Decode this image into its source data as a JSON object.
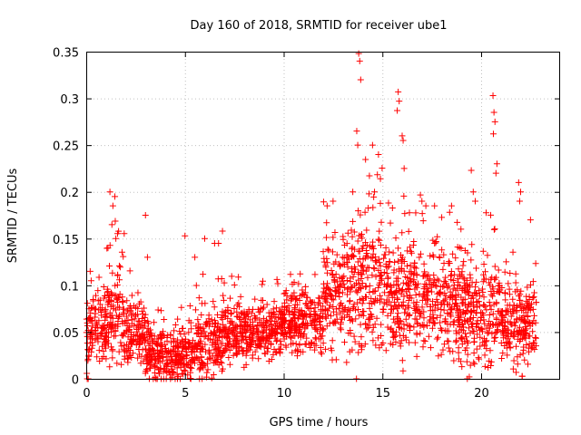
{
  "chart_data": {
    "type": "scatter",
    "title": "Day 160 of 2018, SRMTID for receiver ube1",
    "xlabel": "GPS time / hours",
    "ylabel": "SRMTID / TECUs",
    "xlim": [
      0,
      24
    ],
    "ylim": [
      0,
      0.35
    ],
    "grid": true,
    "marker": "+",
    "color": "#ff0000",
    "xticks": [
      0,
      5,
      10,
      15,
      20
    ],
    "xtick_labels": [
      "0",
      "5",
      "10",
      "15",
      "20"
    ],
    "yticks": [
      0,
      0.05,
      0.1,
      0.15,
      0.2,
      0.25,
      0.3,
      0.35
    ],
    "ytick_labels": [
      "0",
      "0.05",
      "0.1",
      "0.15",
      "0.2",
      "0.25",
      "0.3",
      "0.35"
    ],
    "series": [
      {
        "name": "SRMTID",
        "segments": [
          {
            "t0": 0.0,
            "t1": 1.0,
            "base": 0.05,
            "spread": 0.04
          },
          {
            "t0": 1.0,
            "t1": 2.0,
            "base": 0.065,
            "spread": 0.06
          },
          {
            "t0": 2.0,
            "t1": 3.0,
            "base": 0.05,
            "spread": 0.04
          },
          {
            "t0": 3.0,
            "t1": 5.5,
            "base": 0.025,
            "spread": 0.03
          },
          {
            "t0": 5.5,
            "t1": 7.0,
            "base": 0.04,
            "spread": 0.04
          },
          {
            "t0": 7.0,
            "t1": 10.0,
            "base": 0.05,
            "spread": 0.035
          },
          {
            "t0": 10.0,
            "t1": 12.0,
            "base": 0.06,
            "spread": 0.04
          },
          {
            "t0": 12.0,
            "t1": 13.0,
            "base": 0.09,
            "spread": 0.06
          },
          {
            "t0": 13.0,
            "t1": 15.0,
            "base": 0.1,
            "spread": 0.08
          },
          {
            "t0": 15.0,
            "t1": 17.0,
            "base": 0.09,
            "spread": 0.07
          },
          {
            "t0": 17.0,
            "t1": 19.0,
            "base": 0.08,
            "spread": 0.06
          },
          {
            "t0": 19.0,
            "t1": 21.0,
            "base": 0.07,
            "spread": 0.06
          },
          {
            "t0": 21.0,
            "t1": 22.8,
            "base": 0.06,
            "spread": 0.05
          }
        ],
        "n_points": 2600,
        "peaks": [
          {
            "x": 0.2,
            "y": 0.115
          },
          {
            "x": 0.25,
            "y": 0.105
          },
          {
            "x": 1.2,
            "y": 0.2
          },
          {
            "x": 1.35,
            "y": 0.185
          },
          {
            "x": 1.45,
            "y": 0.195
          },
          {
            "x": 1.3,
            "y": 0.165
          },
          {
            "x": 1.5,
            "y": 0.15
          },
          {
            "x": 1.1,
            "y": 0.14
          },
          {
            "x": 3.0,
            "y": 0.175
          },
          {
            "x": 3.1,
            "y": 0.13
          },
          {
            "x": 5.0,
            "y": 0.153
          },
          {
            "x": 5.5,
            "y": 0.13
          },
          {
            "x": 6.0,
            "y": 0.15
          },
          {
            "x": 6.5,
            "y": 0.145
          },
          {
            "x": 6.9,
            "y": 0.158
          },
          {
            "x": 6.7,
            "y": 0.145
          },
          {
            "x": 12.2,
            "y": 0.185
          },
          {
            "x": 12.5,
            "y": 0.19
          },
          {
            "x": 13.5,
            "y": 0.2
          },
          {
            "x": 13.8,
            "y": 0.348
          },
          {
            "x": 13.85,
            "y": 0.34
          },
          {
            "x": 13.9,
            "y": 0.32
          },
          {
            "x": 13.7,
            "y": 0.265
          },
          {
            "x": 13.75,
            "y": 0.25
          },
          {
            "x": 14.5,
            "y": 0.25
          },
          {
            "x": 14.8,
            "y": 0.24
          },
          {
            "x": 14.6,
            "y": 0.2
          },
          {
            "x": 15.8,
            "y": 0.307
          },
          {
            "x": 15.85,
            "y": 0.297
          },
          {
            "x": 15.75,
            "y": 0.287
          },
          {
            "x": 16.0,
            "y": 0.26
          },
          {
            "x": 16.05,
            "y": 0.255
          },
          {
            "x": 16.1,
            "y": 0.225
          },
          {
            "x": 17.0,
            "y": 0.19
          },
          {
            "x": 17.2,
            "y": 0.185
          },
          {
            "x": 18.5,
            "y": 0.185
          },
          {
            "x": 19.5,
            "y": 0.223
          },
          {
            "x": 19.6,
            "y": 0.2
          },
          {
            "x": 19.7,
            "y": 0.19
          },
          {
            "x": 20.6,
            "y": 0.303
          },
          {
            "x": 20.65,
            "y": 0.285
          },
          {
            "x": 20.7,
            "y": 0.275
          },
          {
            "x": 20.62,
            "y": 0.262
          },
          {
            "x": 20.8,
            "y": 0.23
          },
          {
            "x": 20.75,
            "y": 0.22
          },
          {
            "x": 21.9,
            "y": 0.21
          },
          {
            "x": 22.0,
            "y": 0.2
          },
          {
            "x": 21.95,
            "y": 0.19
          },
          {
            "x": 22.5,
            "y": 0.17
          },
          {
            "x": 0.05,
            "y": 0.0
          },
          {
            "x": 0.1,
            "y": 0.0
          },
          {
            "x": 19.3,
            "y": 0.0
          },
          {
            "x": 19.4,
            "y": 0.002
          }
        ]
      }
    ]
  }
}
